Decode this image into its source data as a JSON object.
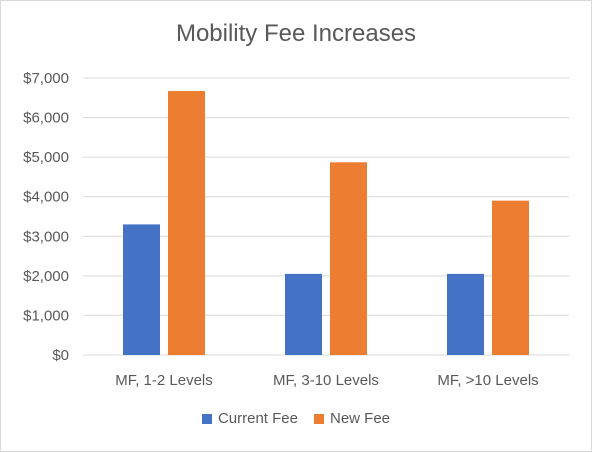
{
  "chart_data": {
    "type": "bar",
    "title": "Mobility Fee Increases",
    "categories": [
      "MF, 1-2 Levels",
      "MF, 3-10 Levels",
      "MF, >10 Levels"
    ],
    "series": [
      {
        "name": "Current Fee",
        "color": "#4472C4",
        "values": [
          3300,
          2050,
          2050
        ]
      },
      {
        "name": "New Fee",
        "color": "#ED7D31",
        "values": [
          6670,
          4870,
          3900
        ]
      }
    ],
    "ylim": [
      0,
      7000
    ],
    "y_ticks": [
      "$0",
      "$1,000",
      "$2,000",
      "$3,000",
      "$4,000",
      "$5,000",
      "$6,000",
      "$7,000"
    ],
    "grid": true,
    "legend_position": "bottom"
  }
}
